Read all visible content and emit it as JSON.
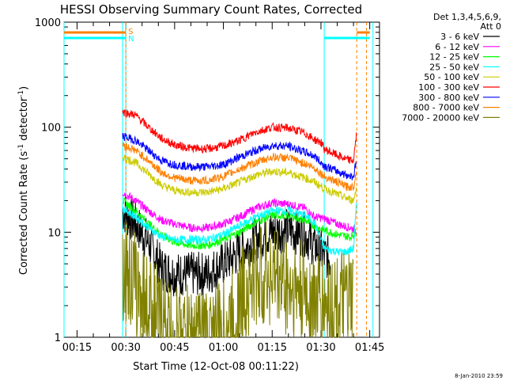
{
  "chart_data": {
    "type": "line",
    "title": "HESSI Observing Summary Count Rates, Corrected",
    "xlabel": "Start Time (12-Oct-08 00:11:22)",
    "ylabel": "Corrected Count Rate (s⁻¹ detector⁻¹)",
    "yscale": "log",
    "xlim": [
      "00:11",
      "01:48"
    ],
    "ylim": [
      1,
      1000
    ],
    "x_ticks": [
      "00:15",
      "00:30",
      "00:45",
      "01:00",
      "01:15",
      "01:30",
      "01:45"
    ],
    "y_ticks": [
      "1",
      "10",
      "100",
      "1000"
    ],
    "legend_header": [
      "Det 1,3,4,5,6,9,",
      "Att 0"
    ],
    "legend_position": "right",
    "series": [
      {
        "name": "3 - 6 keV",
        "color": "#000000",
        "points": [
          [
            "00:29",
            16
          ],
          [
            "00:33",
            12
          ],
          [
            "00:37",
            8
          ],
          [
            "00:41",
            4.5
          ],
          [
            "00:45",
            4
          ],
          [
            "00:50",
            4
          ],
          [
            "00:55",
            4
          ],
          [
            "01:00",
            5
          ],
          [
            "01:05",
            6.5
          ],
          [
            "01:10",
            8.5
          ],
          [
            "01:15",
            10
          ],
          [
            "01:20",
            10.5
          ],
          [
            "01:25",
            9.5
          ],
          [
            "01:28",
            7.5
          ],
          [
            "01:31",
            6
          ],
          [
            "01:33",
            5.5
          ]
        ]
      },
      {
        "name": "6 - 12 keV",
        "color": "#ff00ff",
        "points": [
          [
            "00:29",
            24
          ],
          [
            "00:33",
            20
          ],
          [
            "00:37",
            16
          ],
          [
            "00:41",
            13
          ],
          [
            "00:45",
            12
          ],
          [
            "00:50",
            11
          ],
          [
            "00:55",
            11
          ],
          [
            "01:00",
            12
          ],
          [
            "01:05",
            14
          ],
          [
            "01:10",
            17
          ],
          [
            "01:15",
            19
          ],
          [
            "01:20",
            18.5
          ],
          [
            "01:25",
            17
          ],
          [
            "01:28",
            14
          ],
          [
            "01:31",
            13.5
          ],
          [
            "01:35",
            12
          ],
          [
            "01:39",
            11
          ],
          [
            "01:41",
            10.5
          ]
        ]
      },
      {
        "name": "12 - 25 keV",
        "color": "#00ff00",
        "points": [
          [
            "00:29",
            20
          ],
          [
            "00:33",
            16
          ],
          [
            "00:37",
            12
          ],
          [
            "00:41",
            9.5
          ],
          [
            "00:45",
            8
          ],
          [
            "00:50",
            7.5
          ],
          [
            "00:55",
            7.5
          ],
          [
            "01:00",
            8.5
          ],
          [
            "01:05",
            10
          ],
          [
            "01:10",
            12.5
          ],
          [
            "01:15",
            14.5
          ],
          [
            "01:20",
            14.5
          ],
          [
            "01:25",
            13
          ],
          [
            "01:28",
            11.5
          ],
          [
            "01:31",
            10.5
          ],
          [
            "01:35",
            9.5
          ],
          [
            "01:39",
            9
          ],
          [
            "01:41",
            10
          ]
        ]
      },
      {
        "name": "25 - 50 keV",
        "color": "#00ffff",
        "points": [
          [
            "00:29",
            17
          ],
          [
            "00:33",
            14
          ],
          [
            "00:37",
            11
          ],
          [
            "00:41",
            9
          ],
          [
            "00:45",
            8.5
          ],
          [
            "00:50",
            8.5
          ],
          [
            "00:55",
            8.5
          ],
          [
            "01:00",
            9.5
          ],
          [
            "01:05",
            11.5
          ],
          [
            "01:10",
            14
          ],
          [
            "01:15",
            16
          ],
          [
            "01:20",
            16
          ],
          [
            "01:25",
            14.5
          ],
          [
            "01:28",
            12.5
          ],
          [
            "01:31",
            7
          ],
          [
            "01:35",
            6.5
          ],
          [
            "01:38",
            6.5
          ],
          [
            "01:40",
            7
          ],
          [
            "01:41",
            20
          ]
        ]
      },
      {
        "name": "50 - 100 keV",
        "color": "#cccc00",
        "points": [
          [
            "00:29",
            52
          ],
          [
            "00:33",
            46
          ],
          [
            "00:37",
            36
          ],
          [
            "00:41",
            28
          ],
          [
            "00:45",
            25
          ],
          [
            "00:50",
            24
          ],
          [
            "00:55",
            24
          ],
          [
            "01:00",
            26
          ],
          [
            "01:05",
            30
          ],
          [
            "01:10",
            35
          ],
          [
            "01:15",
            38
          ],
          [
            "01:20",
            37
          ],
          [
            "01:25",
            33
          ],
          [
            "01:28",
            30
          ],
          [
            "01:31",
            26
          ],
          [
            "01:35",
            23
          ],
          [
            "01:38",
            21
          ],
          [
            "01:40",
            20
          ],
          [
            "01:41",
            28
          ]
        ]
      },
      {
        "name": "100 - 300 keV",
        "color": "#ff0000",
        "points": [
          [
            "00:29",
            140
          ],
          [
            "00:33",
            130
          ],
          [
            "00:37",
            100
          ],
          [
            "00:41",
            78
          ],
          [
            "00:45",
            68
          ],
          [
            "00:50",
            63
          ],
          [
            "00:55",
            62
          ],
          [
            "01:00",
            66
          ],
          [
            "01:05",
            75
          ],
          [
            "01:10",
            90
          ],
          [
            "01:15",
            100
          ],
          [
            "01:20",
            98
          ],
          [
            "01:25",
            88
          ],
          [
            "01:28",
            76
          ],
          [
            "01:30",
            72
          ],
          [
            "01:31",
            62
          ],
          [
            "01:35",
            54
          ],
          [
            "01:38",
            49
          ],
          [
            "01:40",
            48
          ],
          [
            "01:41",
            90
          ]
        ]
      },
      {
        "name": "300 - 800 keV",
        "color": "#0000ff",
        "points": [
          [
            "00:29",
            82
          ],
          [
            "00:33",
            75
          ],
          [
            "00:37",
            60
          ],
          [
            "00:41",
            48
          ],
          [
            "00:45",
            44
          ],
          [
            "00:50",
            42
          ],
          [
            "00:55",
            42
          ],
          [
            "01:00",
            44
          ],
          [
            "01:05",
            52
          ],
          [
            "01:10",
            60
          ],
          [
            "01:15",
            67
          ],
          [
            "01:20",
            66
          ],
          [
            "01:25",
            58
          ],
          [
            "01:28",
            53
          ],
          [
            "01:31",
            43
          ],
          [
            "01:35",
            38
          ],
          [
            "01:38",
            35
          ],
          [
            "01:40",
            34
          ],
          [
            "01:41",
            50
          ]
        ]
      },
      {
        "name": "800 - 7000 keV",
        "color": "#ff8000",
        "points": [
          [
            "00:29",
            68
          ],
          [
            "00:33",
            60
          ],
          [
            "00:37",
            48
          ],
          [
            "00:41",
            37
          ],
          [
            "00:45",
            33
          ],
          [
            "00:50",
            31
          ],
          [
            "00:55",
            31
          ],
          [
            "01:00",
            34
          ],
          [
            "01:05",
            40
          ],
          [
            "01:10",
            46
          ],
          [
            "01:15",
            52
          ],
          [
            "01:20",
            51
          ],
          [
            "01:25",
            45
          ],
          [
            "01:28",
            41
          ],
          [
            "01:31",
            34
          ],
          [
            "01:35",
            30
          ],
          [
            "01:38",
            27
          ],
          [
            "01:40",
            27
          ],
          [
            "01:41",
            40
          ]
        ]
      },
      {
        "name": "7000 - 20000 keV",
        "color": "#808000",
        "points": [
          [
            "00:29",
            4.6
          ],
          [
            "00:31",
            4
          ],
          [
            "00:33",
            3
          ],
          [
            "00:37",
            2
          ],
          [
            "00:40",
            1.5
          ],
          [
            "00:45",
            1
          ],
          [
            "00:55",
            1
          ],
          [
            "01:00",
            1.2
          ],
          [
            "01:03",
            1.5
          ],
          [
            "01:06",
            2.5
          ],
          [
            "01:08",
            3
          ],
          [
            "01:10",
            3.5
          ],
          [
            "01:13",
            4
          ],
          [
            "01:17",
            3.8
          ],
          [
            "01:20",
            3
          ],
          [
            "01:25",
            2.6
          ],
          [
            "01:28",
            2.2
          ],
          [
            "01:30",
            2
          ],
          [
            "01:40",
            2
          ]
        ]
      }
    ],
    "annotations": {
      "S": {
        "color": "#ff8000",
        "spans": [
          [
            "00:11",
            "00:30"
          ],
          [
            "01:41",
            "01:45"
          ]
        ]
      },
      "N": {
        "color": "#00ffff",
        "spans": [
          [
            "00:11",
            "00:30"
          ],
          [
            "01:31",
            "01:45"
          ]
        ]
      },
      "vlines_cyan": [
        "00:11",
        "00:29",
        "00:30",
        "01:31",
        "01:46"
      ],
      "vlines_orange": [
        "00:30",
        "01:41",
        "01:44"
      ]
    },
    "footer_timestamp": "8-Jan-2010 23:59",
    "grid": false
  }
}
